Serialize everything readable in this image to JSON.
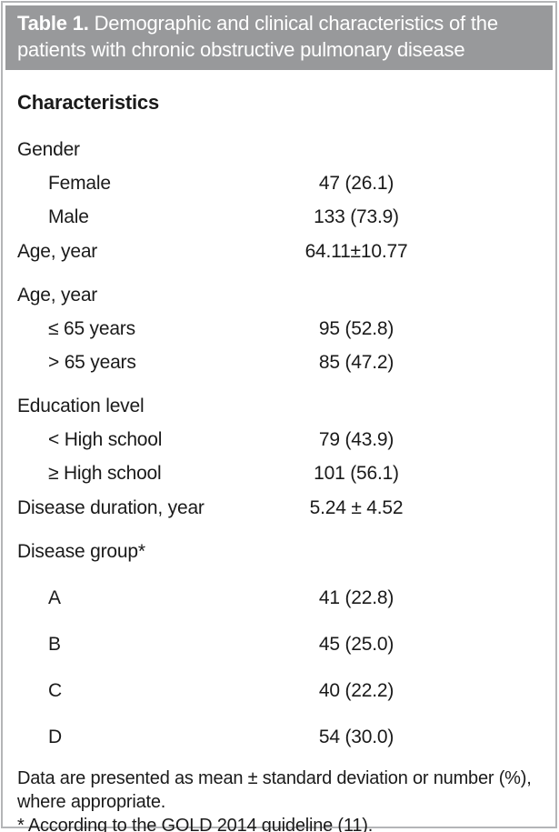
{
  "table": {
    "title_label": "Table 1.",
    "title_text": "Demographic and clinical characteristics of the patients with chronic obstructive pulmonary disease",
    "column_header": "Characteristics",
    "rows": [
      {
        "label": "Gender",
        "value": "",
        "type": "section"
      },
      {
        "label": "Female",
        "value": "47 (26.1)",
        "type": "item"
      },
      {
        "label": "Male",
        "value": "133 (73.9)",
        "type": "item"
      },
      {
        "label": "Age, year",
        "value": "64.11±10.77",
        "type": "plain"
      },
      {
        "label": "Age, year",
        "value": "",
        "type": "section"
      },
      {
        "label": "≤ 65 years",
        "value": "95 (52.8)",
        "type": "item"
      },
      {
        "label": "> 65 years",
        "value": "85 (47.2)",
        "type": "item"
      },
      {
        "label": "Education level",
        "value": "",
        "type": "section"
      },
      {
        "label": "< High school",
        "value": "79 (43.9)",
        "type": "item"
      },
      {
        "label": "≥ High school",
        "value": "101 (56.1)",
        "type": "item"
      },
      {
        "label": "Disease duration, year",
        "value": "5.24 ± 4.52",
        "type": "plain"
      },
      {
        "label": "Disease group*",
        "value": "",
        "type": "section"
      },
      {
        "label": "A",
        "value": "41 (22.8)",
        "type": "item-lg"
      },
      {
        "label": "B",
        "value": "45 (25.0)",
        "type": "item-lg"
      },
      {
        "label": "C",
        "value": "40 (22.2)",
        "type": "item-lg"
      },
      {
        "label": "D",
        "value": "54 (30.0)",
        "type": "item-lg"
      }
    ],
    "footnotes": [
      "Data are presented as mean ± standard deviation or number (%), where appropriate.",
      "* According to the GOLD 2014 guideline (11)."
    ],
    "colors": {
      "title_band": "#98999b",
      "title_text": "#ffffff",
      "body_text": "#1a1a1a",
      "rule": "#1d1d1d",
      "outer_border": "#b4b5b7"
    }
  }
}
